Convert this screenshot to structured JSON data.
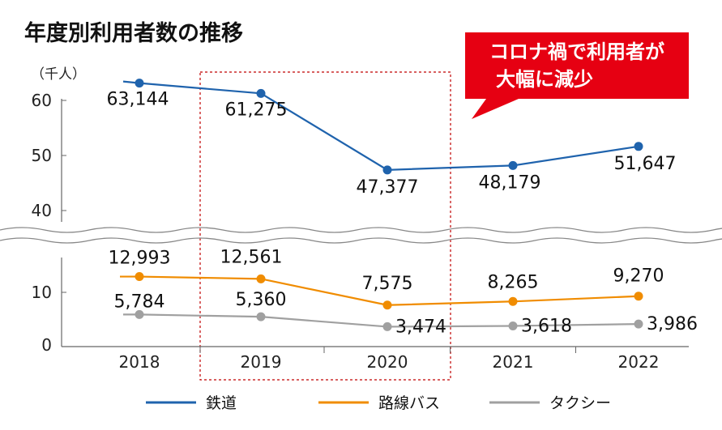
{
  "chart_data": {
    "type": "line",
    "title": "年度別利用者数の推移",
    "ylabel": "（千人）",
    "categories": [
      "2018",
      "2019",
      "2020",
      "2021",
      "2022"
    ],
    "upper_axis": {
      "ylim": [
        40,
        60
      ],
      "ticks": [
        "60",
        "50",
        "40"
      ]
    },
    "lower_axis": {
      "ylim": [
        0,
        10
      ],
      "ticks": [
        "10",
        "0"
      ]
    },
    "axis_break": true,
    "grid": false,
    "legend_position": "bottom",
    "highlight": {
      "category": "2019"
    },
    "annotation": {
      "line1": "コロナ禍で利用者が",
      "line2": "大幅に減少",
      "color": "#e60012"
    },
    "series": [
      {
        "name": "鉄道",
        "color": "#1f63ad",
        "axis": "upper",
        "values": [
          63.144,
          61.275,
          47.377,
          48.179,
          51.647
        ],
        "labels": [
          "63,144",
          "61,275",
          "47,377",
          "48,179",
          "51,647"
        ]
      },
      {
        "name": "路線バス",
        "color": "#f08c00",
        "axis": "lower",
        "values": [
          12.993,
          12.561,
          7.575,
          8.265,
          9.27
        ],
        "labels": [
          "12,993",
          "12,561",
          "7,575",
          "8,265",
          "9,270"
        ]
      },
      {
        "name": "タクシー",
        "color": "#a0a0a0",
        "axis": "lower",
        "values": [
          5.784,
          5.36,
          3.474,
          3.618,
          3.986
        ],
        "labels": [
          "5,784",
          "5,360",
          "3,474",
          "3,618",
          "3,986"
        ]
      }
    ]
  }
}
